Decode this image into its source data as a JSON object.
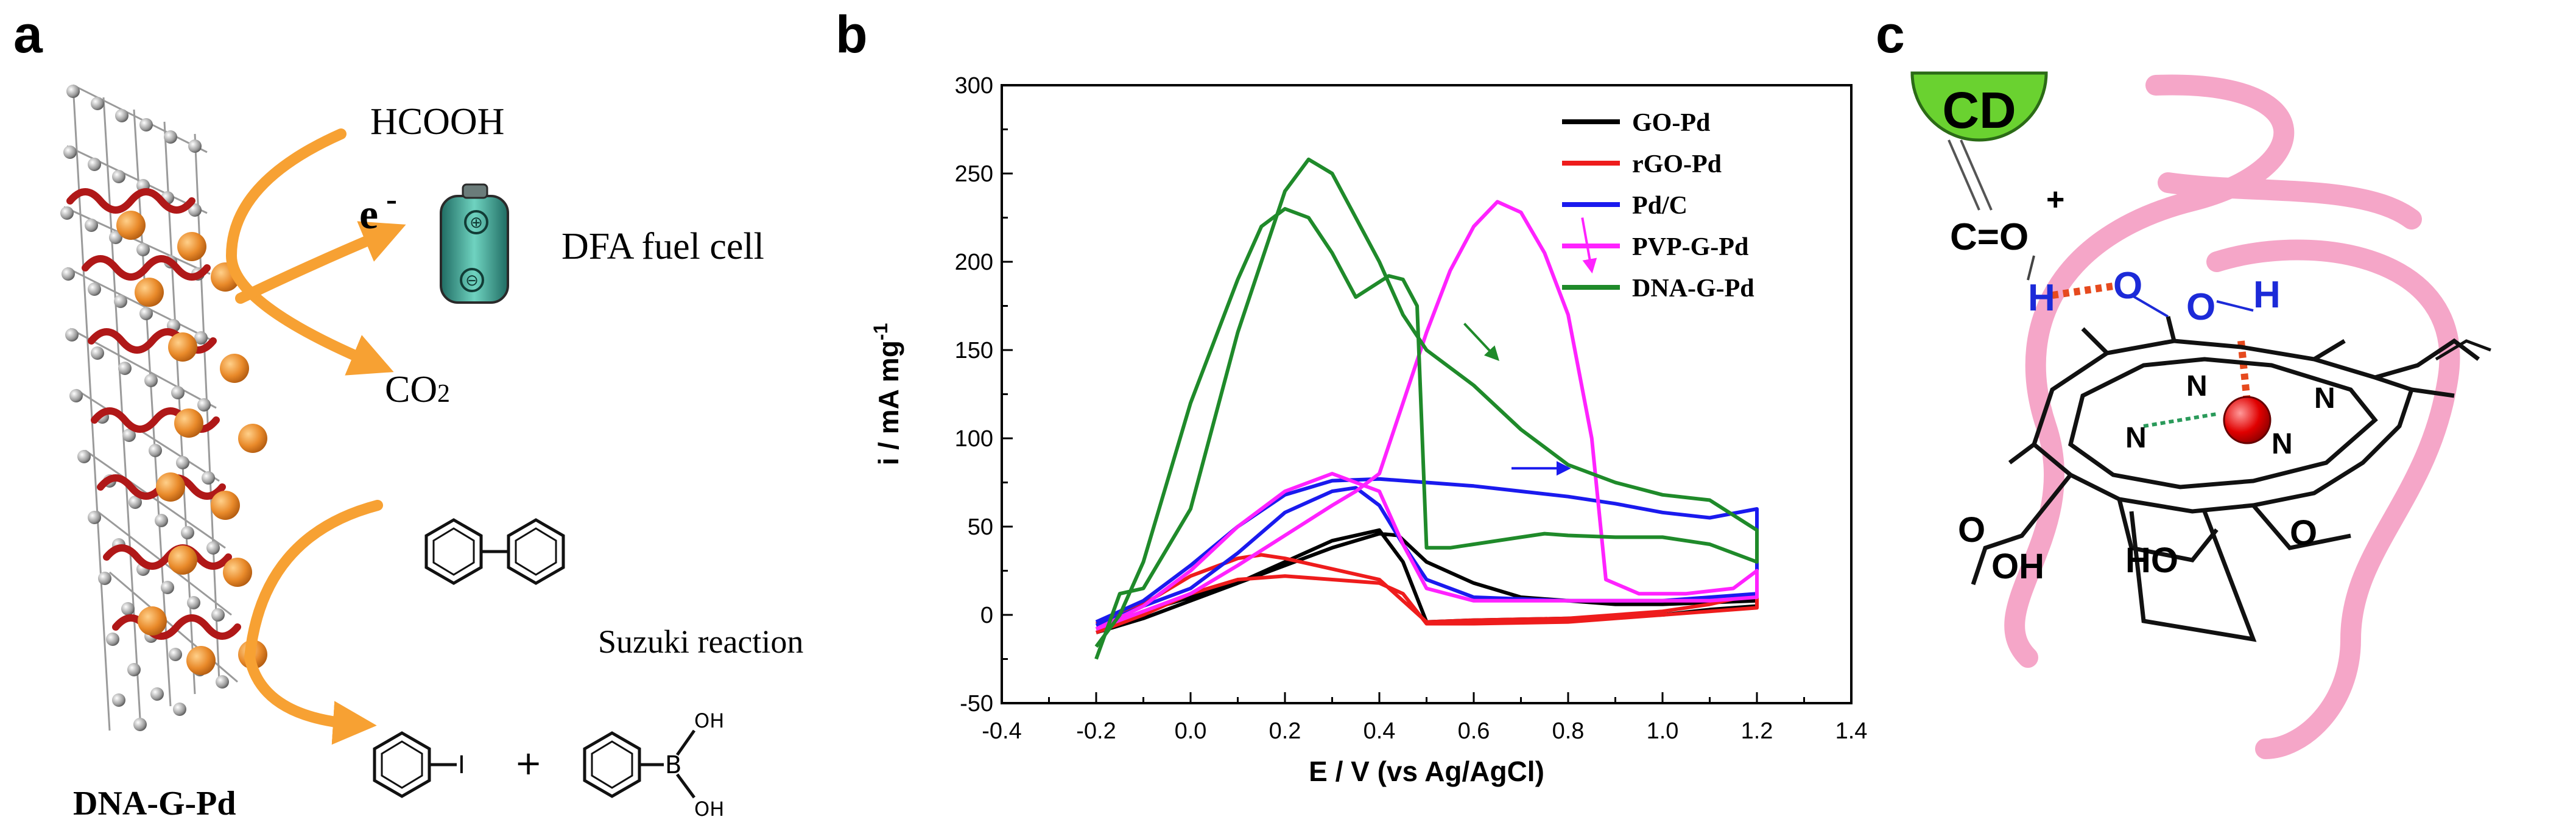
{
  "panels": {
    "a": {
      "letter": "a",
      "reactant_label": "HCOOH",
      "electron_label": "e",
      "electron_sup": "-",
      "fuel_cell_label": "DFA fuel cell",
      "product_label": "CO",
      "product_sub": "2",
      "suzuki_label": "Suzuki reaction",
      "material_label": "DNA-G-Pd",
      "iodo_label": "I",
      "plus_label": "+",
      "boron_label": "B",
      "oh_top": "OH",
      "oh_bottom": "OH",
      "battery_plus": "⊕",
      "battery_minus": "⊖"
    },
    "b": {
      "letter": "b"
    },
    "c": {
      "letter": "c",
      "cd_label": "CD",
      "carbonyl_label": "C=O",
      "plus_sign": "+",
      "h_left": "H",
      "o_mid": "O",
      "o_right": "O",
      "h_right": "H",
      "n1": "N",
      "n2": "N",
      "n3": "N",
      "n4": "N",
      "oh_left": "OH",
      "o_left": "O",
      "ho_right": "HO",
      "o_right2": "O"
    }
  },
  "colors": {
    "GO-Pd": "#000000",
    "rGO-Pd": "#ee1c1c",
    "Pd/C": "#1a1aee",
    "PVP-G-Pd": "#ff22ff",
    "DNA-G-Pd": "#1f8a2a",
    "arrow_orange": "#f7a133",
    "pink_ribbon": "#f5a6c8",
    "cd_green": "#6ad230"
  },
  "chart_data": {
    "type": "line",
    "xlabel": "E / V (vs Ag/AgCl)",
    "ylabel": "i / mA mg",
    "ylabel_sup": "-1",
    "xlim": [
      -0.4,
      1.4
    ],
    "ylim": [
      -50,
      300
    ],
    "xticks": [
      "-0.4",
      "-0.2",
      "0.0",
      "0.2",
      "0.4",
      "0.6",
      "0.8",
      "1.0",
      "1.2",
      "1.4"
    ],
    "yticks": [
      "-50",
      "0",
      "50",
      "100",
      "150",
      "200",
      "250",
      "300"
    ],
    "xtick_values": [
      -0.4,
      -0.2,
      0.0,
      0.2,
      0.4,
      0.6,
      0.8,
      1.0,
      1.2,
      1.4
    ],
    "ytick_values": [
      -50,
      0,
      50,
      100,
      150,
      200,
      250,
      300
    ],
    "legend_position": "top-right",
    "series": [
      {
        "name": "GO-Pd",
        "color": "#000000",
        "points": [
          [
            -0.2,
            -8
          ],
          [
            -0.1,
            2
          ],
          [
            0.0,
            10
          ],
          [
            0.1,
            18
          ],
          [
            0.2,
            28
          ],
          [
            0.3,
            38
          ],
          [
            0.4,
            46
          ],
          [
            0.44,
            45
          ],
          [
            0.5,
            30
          ],
          [
            0.6,
            18
          ],
          [
            0.7,
            10
          ],
          [
            0.8,
            8
          ],
          [
            0.9,
            6
          ],
          [
            1.0,
            6
          ],
          [
            1.1,
            7
          ],
          [
            1.2,
            8
          ],
          [
            1.2,
            5
          ],
          [
            1.1,
            3
          ],
          [
            1.0,
            0
          ],
          [
            0.8,
            -2
          ],
          [
            0.6,
            -3
          ],
          [
            0.5,
            -4
          ],
          [
            0.45,
            30
          ],
          [
            0.4,
            48
          ],
          [
            0.3,
            42
          ],
          [
            0.2,
            30
          ],
          [
            0.1,
            18
          ],
          [
            0.0,
            8
          ],
          [
            -0.1,
            -2
          ],
          [
            -0.2,
            -10
          ]
        ]
      },
      {
        "name": "rGO-Pd",
        "color": "#ee1c1c",
        "points": [
          [
            -0.2,
            -5
          ],
          [
            -0.1,
            6
          ],
          [
            0.0,
            22
          ],
          [
            0.1,
            32
          ],
          [
            0.15,
            34
          ],
          [
            0.2,
            32
          ],
          [
            0.3,
            26
          ],
          [
            0.4,
            20
          ],
          [
            0.5,
            -4
          ],
          [
            0.6,
            -3
          ],
          [
            0.8,
            -2
          ],
          [
            1.0,
            2
          ],
          [
            1.1,
            6
          ],
          [
            1.2,
            12
          ],
          [
            1.2,
            4
          ],
          [
            1.0,
            0
          ],
          [
            0.8,
            -4
          ],
          [
            0.6,
            -5
          ],
          [
            0.5,
            -5
          ],
          [
            0.45,
            12
          ],
          [
            0.4,
            18
          ],
          [
            0.3,
            20
          ],
          [
            0.2,
            22
          ],
          [
            0.1,
            20
          ],
          [
            0.0,
            12
          ],
          [
            -0.1,
            0
          ],
          [
            -0.2,
            -10
          ]
        ]
      },
      {
        "name": "Pd/C",
        "color": "#1a1aee",
        "points": [
          [
            -0.2,
            -6
          ],
          [
            -0.1,
            5
          ],
          [
            0.0,
            15
          ],
          [
            0.1,
            35
          ],
          [
            0.2,
            58
          ],
          [
            0.3,
            70
          ],
          [
            0.35,
            72
          ],
          [
            0.4,
            62
          ],
          [
            0.45,
            40
          ],
          [
            0.5,
            20
          ],
          [
            0.6,
            10
          ],
          [
            0.8,
            8
          ],
          [
            1.0,
            8
          ],
          [
            1.2,
            12
          ],
          [
            1.2,
            60
          ],
          [
            1.1,
            55
          ],
          [
            1.0,
            58
          ],
          [
            0.9,
            63
          ],
          [
            0.8,
            67
          ],
          [
            0.7,
            70
          ],
          [
            0.6,
            73
          ],
          [
            0.5,
            75
          ],
          [
            0.4,
            77
          ],
          [
            0.3,
            76
          ],
          [
            0.2,
            68
          ],
          [
            0.1,
            50
          ],
          [
            0.0,
            28
          ],
          [
            -0.1,
            8
          ],
          [
            -0.2,
            -4
          ]
        ]
      },
      {
        "name": "PVP-G-Pd",
        "color": "#ff22ff",
        "points": [
          [
            -0.2,
            -8
          ],
          [
            -0.1,
            2
          ],
          [
            0.0,
            12
          ],
          [
            0.1,
            28
          ],
          [
            0.2,
            45
          ],
          [
            0.3,
            62
          ],
          [
            0.35,
            70
          ],
          [
            0.4,
            80
          ],
          [
            0.45,
            120
          ],
          [
            0.5,
            160
          ],
          [
            0.55,
            195
          ],
          [
            0.6,
            220
          ],
          [
            0.65,
            234
          ],
          [
            0.7,
            228
          ],
          [
            0.75,
            205
          ],
          [
            0.8,
            170
          ],
          [
            0.85,
            100
          ],
          [
            0.88,
            20
          ],
          [
            0.95,
            12
          ],
          [
            1.05,
            12
          ],
          [
            1.15,
            15
          ],
          [
            1.2,
            25
          ],
          [
            1.2,
            10
          ],
          [
            1.1,
            8
          ],
          [
            1.0,
            8
          ],
          [
            0.9,
            8
          ],
          [
            0.8,
            8
          ],
          [
            0.7,
            8
          ],
          [
            0.6,
            8
          ],
          [
            0.5,
            15
          ],
          [
            0.45,
            40
          ],
          [
            0.4,
            70
          ],
          [
            0.3,
            80
          ],
          [
            0.2,
            70
          ],
          [
            0.1,
            50
          ],
          [
            0.0,
            25
          ],
          [
            -0.1,
            5
          ],
          [
            -0.2,
            -8
          ]
        ]
      },
      {
        "name": "DNA-G-Pd",
        "color": "#1f8a2a",
        "points": [
          [
            -0.2,
            -25
          ],
          [
            -0.15,
            12
          ],
          [
            -0.1,
            15
          ],
          [
            0.0,
            60
          ],
          [
            0.1,
            160
          ],
          [
            0.2,
            240
          ],
          [
            0.25,
            258
          ],
          [
            0.3,
            250
          ],
          [
            0.35,
            225
          ],
          [
            0.4,
            200
          ],
          [
            0.45,
            170
          ],
          [
            0.5,
            150
          ],
          [
            0.6,
            130
          ],
          [
            0.7,
            105
          ],
          [
            0.8,
            85
          ],
          [
            0.9,
            75
          ],
          [
            1.0,
            68
          ],
          [
            1.1,
            65
          ],
          [
            1.2,
            48
          ],
          [
            1.2,
            30
          ],
          [
            1.1,
            40
          ],
          [
            1.0,
            44
          ],
          [
            0.9,
            44
          ],
          [
            0.8,
            45
          ],
          [
            0.75,
            46
          ],
          [
            0.7,
            44
          ],
          [
            0.6,
            40
          ],
          [
            0.55,
            38
          ],
          [
            0.5,
            38
          ],
          [
            0.48,
            175
          ],
          [
            0.45,
            190
          ],
          [
            0.42,
            192
          ],
          [
            0.35,
            180
          ],
          [
            0.3,
            205
          ],
          [
            0.25,
            225
          ],
          [
            0.2,
            230
          ],
          [
            0.15,
            220
          ],
          [
            0.1,
            190
          ],
          [
            0.0,
            120
          ],
          [
            -0.1,
            30
          ],
          [
            -0.15,
            0
          ],
          [
            -0.2,
            -18
          ]
        ]
      }
    ],
    "annotations": [
      {
        "type": "arrow",
        "color": "#1f8a2a",
        "from": [
          0.58,
          165
        ],
        "to": [
          0.65,
          145
        ]
      },
      {
        "type": "arrow",
        "color": "#ff22ff",
        "from": [
          0.83,
          225
        ],
        "to": [
          0.85,
          195
        ]
      },
      {
        "type": "arrow",
        "color": "#1a1aee",
        "from": [
          0.68,
          83
        ],
        "to": [
          0.8,
          83
        ]
      }
    ]
  }
}
